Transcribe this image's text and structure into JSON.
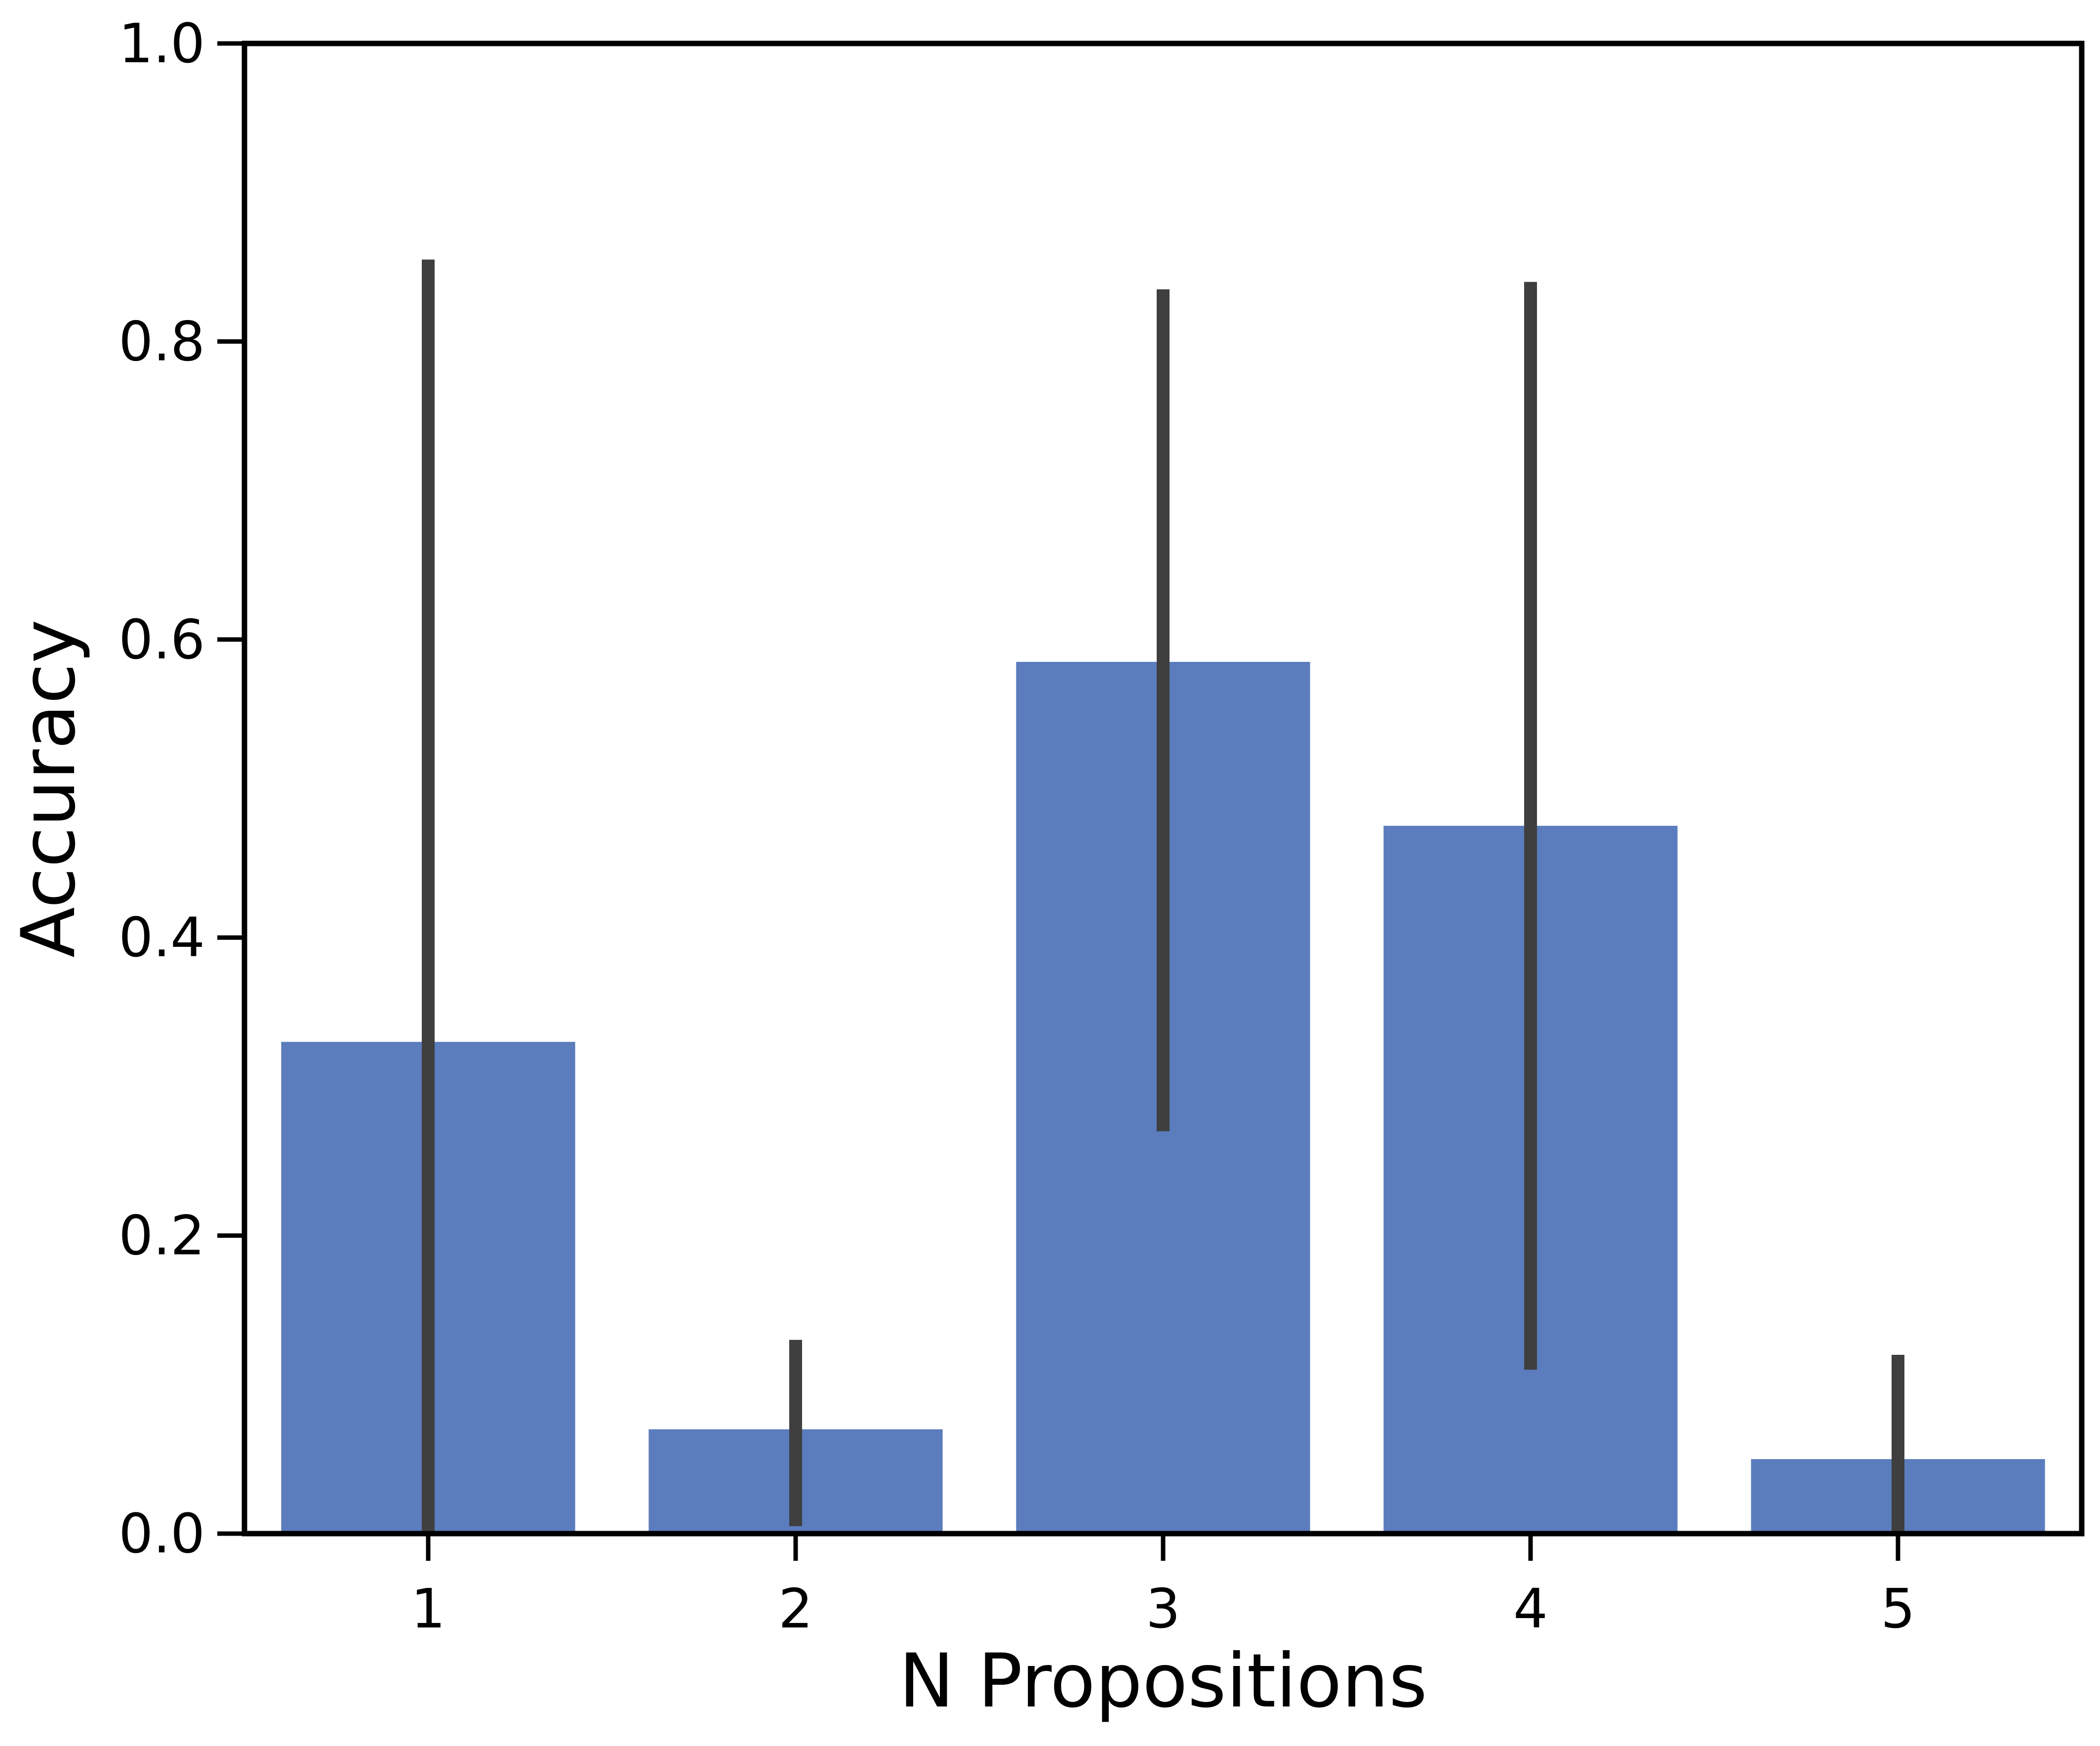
{
  "chart_data": {
    "type": "bar",
    "title": "",
    "xlabel": "N Propositions",
    "ylabel": "Accuracy",
    "categories": [
      "1",
      "2",
      "3",
      "4",
      "5"
    ],
    "values": [
      0.33,
      0.07,
      0.585,
      0.475,
      0.05
    ],
    "error_bars": {
      "low": [
        0.0,
        0.005,
        0.27,
        0.11,
        0.0
      ],
      "high": [
        0.855,
        0.13,
        0.835,
        0.84,
        0.12
      ]
    },
    "ylim": [
      0.0,
      1.0
    ],
    "yticks": [
      "0.0",
      "0.2",
      "0.4",
      "0.6",
      "0.8",
      "1.0"
    ],
    "grid": false,
    "colors": {
      "bar": "#5b7cbd",
      "error_bar": "#3f3f3f",
      "axis": "#000000"
    }
  }
}
